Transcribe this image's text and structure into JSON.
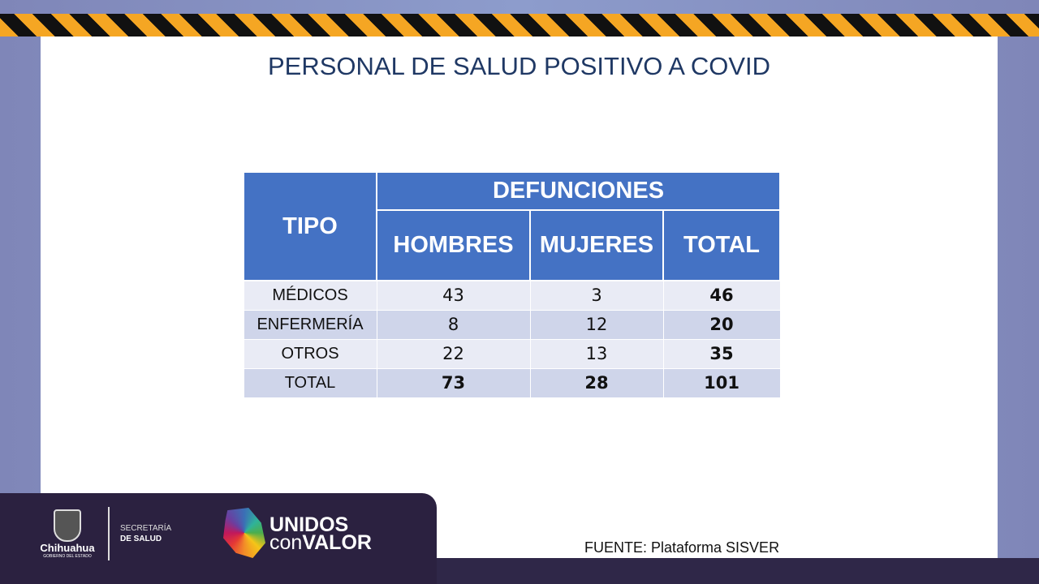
{
  "title": "PERSONAL DE SALUD POSITIVO A COVID",
  "table": {
    "header_tipo": "TIPO",
    "header_group": "DEFUNCIONES",
    "columns": [
      "HOMBRES",
      "MUJERES",
      "TOTAL"
    ],
    "rows": [
      {
        "tipo": "MÉDICOS",
        "hombres": "43",
        "mujeres": "3",
        "total": "46"
      },
      {
        "tipo": "ENFERMERÍA",
        "hombres": "8",
        "mujeres": "12",
        "total": "20"
      },
      {
        "tipo": "OTROS",
        "hombres": "22",
        "mujeres": "13",
        "total": "35"
      },
      {
        "tipo": "TOTAL",
        "hombres": "73",
        "mujeres": "28",
        "total": "101"
      }
    ]
  },
  "source": "FUENTE: Plataforma SISVER",
  "footer": {
    "gov_name": "Chihuahua",
    "gov_sub": "GOBIERNO DEL ESTADO",
    "secretaria_line1": "SECRETARÍA",
    "secretaria_line2": "DE SALUD",
    "campaign_line1": "UNIDOS",
    "campaign_con": "con",
    "campaign_valor": "VALOR"
  },
  "colors": {
    "header": "#4472C4",
    "row_light": "#E9EBF5",
    "row_dark": "#CFD5EA",
    "footer": "#2B2140"
  }
}
